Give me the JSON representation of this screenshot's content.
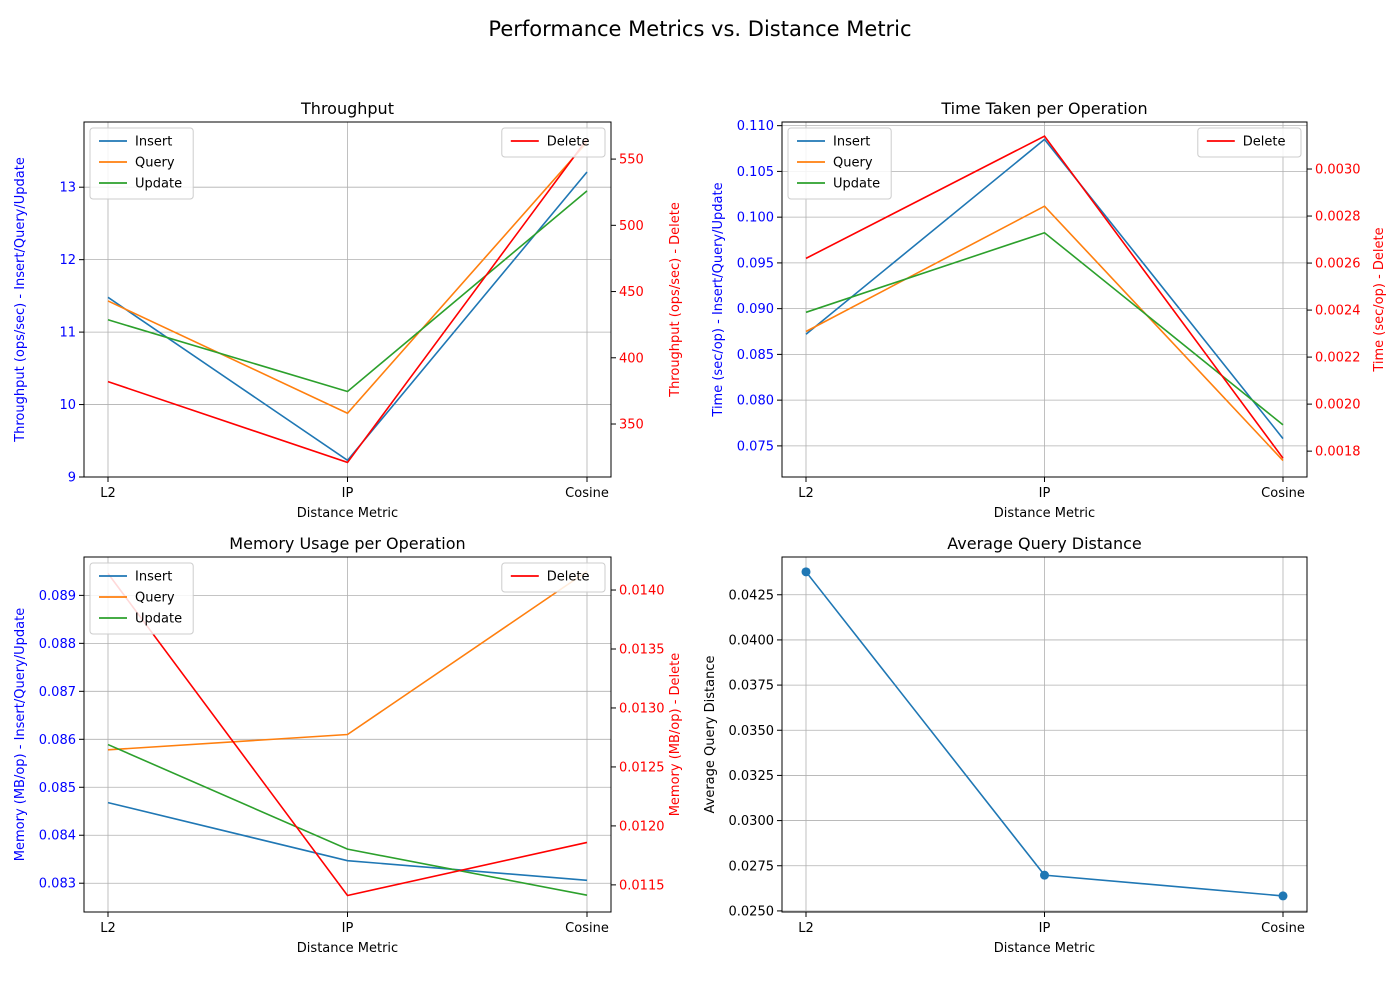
{
  "figure": {
    "title": "Performance Metrics vs. Distance Metric"
  },
  "colors": {
    "insert": "#1f77b4",
    "query": "#ff7f0e",
    "update": "#2ca02c",
    "delete": "#ff0000",
    "left_axis_label": "#0000ff",
    "right_axis_label": "#ff0000",
    "grid": "#b0b0b0"
  },
  "chart_data": [
    {
      "type": "line",
      "title": "Throughput",
      "categories": [
        "L2",
        "IP",
        "Cosine"
      ],
      "xlabel": "Distance Metric",
      "ylabel": "Throughput (ops/sec) - Insert/Query/Update",
      "ylim": [
        9.0,
        13.9
      ],
      "yticks": [
        9,
        10,
        11,
        12,
        13
      ],
      "ytick_labels": [
        "9",
        "10",
        "11",
        "12",
        "13"
      ],
      "series": [
        {
          "name": "Insert",
          "values": [
            11.48,
            9.23,
            13.21
          ]
        },
        {
          "name": "Query",
          "values": [
            11.43,
            9.88,
            13.62
          ]
        },
        {
          "name": "Update",
          "values": [
            11.17,
            10.18,
            12.95
          ]
        }
      ],
      "right_axis": {
        "ylabel": "Throughput (ops/sec) - Delete",
        "ylim": [
          310,
          578
        ],
        "yticks": [
          350,
          400,
          450,
          500,
          550
        ],
        "ytick_labels": [
          "350",
          "400",
          "450",
          "500",
          "550"
        ],
        "series": [
          {
            "name": "Delete",
            "values": [
              382,
              321,
              565
            ]
          }
        ]
      },
      "legend_left": "upper-left",
      "legend_right": "upper-right",
      "grid": true
    },
    {
      "type": "line",
      "title": "Time Taken per Operation",
      "categories": [
        "L2",
        "IP",
        "Cosine"
      ],
      "xlabel": "Distance Metric",
      "ylabel": "Time (sec/op) - Insert/Query/Update",
      "ylim": [
        0.0716,
        0.1104
      ],
      "yticks": [
        0.075,
        0.08,
        0.085,
        0.09,
        0.095,
        0.1,
        0.105,
        0.11
      ],
      "ytick_labels": [
        "0.075",
        "0.080",
        "0.085",
        "0.090",
        "0.095",
        "0.100",
        "0.105",
        "0.110"
      ],
      "series": [
        {
          "name": "Insert",
          "values": [
            0.0872,
            0.1085,
            0.0758
          ]
        },
        {
          "name": "Query",
          "values": [
            0.0875,
            0.1012,
            0.0734
          ]
        },
        {
          "name": "Update",
          "values": [
            0.0896,
            0.0983,
            0.0773
          ]
        }
      ],
      "right_axis": {
        "ylabel": "Time (sec/op) - Delete",
        "ylim": [
          0.00169,
          0.0032
        ],
        "yticks": [
          0.0018,
          0.002,
          0.0022,
          0.0024,
          0.0026,
          0.0028,
          0.003
        ],
        "ytick_labels": [
          "0.0018",
          "0.0020",
          "0.0022",
          "0.0024",
          "0.0026",
          "0.0028",
          "0.0030"
        ],
        "series": [
          {
            "name": "Delete",
            "values": [
              0.00262,
              0.00314,
              0.00177
            ]
          }
        ]
      },
      "legend_left": "upper-left",
      "legend_right": "upper-right",
      "grid": true
    },
    {
      "type": "line",
      "title": "Memory Usage per Operation",
      "categories": [
        "L2",
        "IP",
        "Cosine"
      ],
      "xlabel": "Distance Metric",
      "ylabel": "Memory (MB/op) - Insert/Query/Update",
      "ylim": [
        0.0824,
        0.0898
      ],
      "yticks": [
        0.083,
        0.084,
        0.085,
        0.086,
        0.087,
        0.088,
        0.089
      ],
      "ytick_labels": [
        "0.083",
        "0.084",
        "0.085",
        "0.086",
        "0.087",
        "0.088",
        "0.089"
      ],
      "series": [
        {
          "name": "Insert",
          "values": [
            0.08468,
            0.08347,
            0.08306
          ]
        },
        {
          "name": "Query",
          "values": [
            0.08578,
            0.0861,
            0.0895
          ]
        },
        {
          "name": "Update",
          "values": [
            0.08589,
            0.08371,
            0.08275
          ]
        }
      ],
      "right_axis": {
        "ylabel": "Memory (MB/op) - Delete",
        "ylim": [
          0.01127,
          0.01428
        ],
        "yticks": [
          0.0115,
          0.012,
          0.0125,
          0.013,
          0.0135,
          0.014
        ],
        "ytick_labels": [
          "0.0115",
          "0.0120",
          "0.0125",
          "0.0130",
          "0.0135",
          "0.0140"
        ],
        "series": [
          {
            "name": "Delete",
            "values": [
              0.01414,
              0.01141,
              0.01186
            ]
          }
        ]
      },
      "legend_left": "upper-left",
      "legend_right": "upper-right",
      "grid": true
    },
    {
      "type": "line",
      "title": "Average Query Distance",
      "categories": [
        "L2",
        "IP",
        "Cosine"
      ],
      "xlabel": "Distance Metric",
      "ylabel": "Average Query Distance",
      "ylim": [
        0.02494,
        0.04459
      ],
      "yticks": [
        0.025,
        0.0275,
        0.03,
        0.0325,
        0.035,
        0.0375,
        0.04,
        0.0425
      ],
      "ytick_labels": [
        "0.0250",
        "0.0275",
        "0.0300",
        "0.0325",
        "0.0350",
        "0.0375",
        "0.0400",
        "0.0425"
      ],
      "series": [
        {
          "name": "",
          "values": [
            0.04377,
            0.02698,
            0.02583
          ],
          "markers": true
        }
      ],
      "grid": true
    }
  ]
}
